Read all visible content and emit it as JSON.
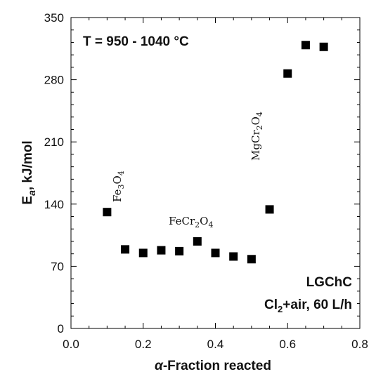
{
  "chart_data": {
    "type": "scatter",
    "xlabel_symbol": "α",
    "xlabel_rest": "-Fraction reacted",
    "ylabel_main": "E",
    "ylabel_sub": "a",
    "ylabel_rest": ", kJ/mol",
    "xlim": [
      0.0,
      0.8
    ],
    "ylim": [
      0,
      350
    ],
    "xticks": [
      "0.0",
      "0.2",
      "0.4",
      "0.6",
      "0.8"
    ],
    "yticks": [
      "0",
      "70",
      "140",
      "210",
      "280",
      "350"
    ],
    "grid": false,
    "marker": "square",
    "marker_color": "#000000",
    "points": [
      {
        "x": 0.1,
        "y": 131
      },
      {
        "x": 0.15,
        "y": 89
      },
      {
        "x": 0.2,
        "y": 85
      },
      {
        "x": 0.25,
        "y": 88
      },
      {
        "x": 0.3,
        "y": 87
      },
      {
        "x": 0.35,
        "y": 98
      },
      {
        "x": 0.4,
        "y": 85
      },
      {
        "x": 0.45,
        "y": 81
      },
      {
        "x": 0.5,
        "y": 78
      },
      {
        "x": 0.55,
        "y": 134
      },
      {
        "x": 0.6,
        "y": 287
      },
      {
        "x": 0.65,
        "y": 319
      },
      {
        "x": 0.7,
        "y": 317
      }
    ],
    "annotations": {
      "temperature": "T = 950 - 1040 °C",
      "fe3o4": {
        "a": "Fe",
        "b": "3",
        "c": "O",
        "d": "4"
      },
      "fecr2o4": {
        "a": "FeCr",
        "b": "2",
        "c": "O",
        "d": "4"
      },
      "mgcr2o4": {
        "a": "MgCr",
        "b": "2",
        "c": "O",
        "d": "4"
      },
      "sample": "LGChC",
      "conditions_a": "Cl",
      "conditions_b": "2",
      "conditions_c": "+air, 60 L/h"
    }
  }
}
